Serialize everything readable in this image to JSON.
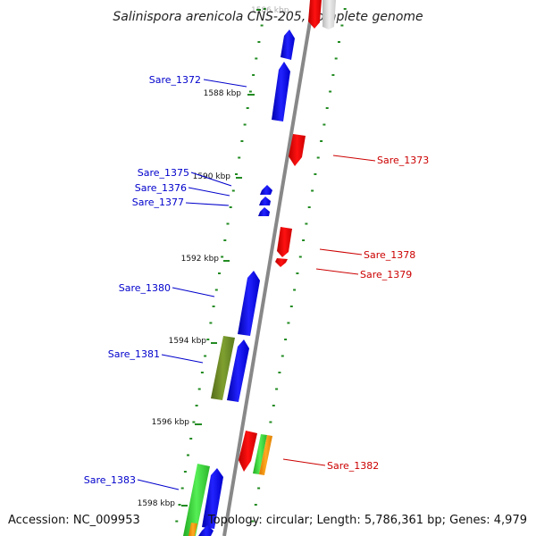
{
  "title": "Salinispora arenicola CNS-205, complete genome",
  "accession": "Accession: NC_009953",
  "summary": "Topology: circular; Length: 5,786,361 bp; Genes: 4,979",
  "colors": {
    "forward_gene": "#0000ee",
    "reverse_gene": "#ee0000",
    "forward_label": "#0000cc",
    "reverse_label": "#cc0000",
    "backbone": "#888888",
    "ticks": "#228B22",
    "olive_gene": "#6b8e23",
    "green_gene": "#33cc33",
    "orange_gene": "#ff9900"
  },
  "kbp_ticks": [
    {
      "id": "1586",
      "text": "1586 kbp"
    },
    {
      "id": "1588",
      "text": "1588 kbp"
    },
    {
      "id": "1590",
      "text": "1590 kbp"
    },
    {
      "id": "1592",
      "text": "1592 kbp"
    },
    {
      "id": "1594",
      "text": "1594 kbp"
    },
    {
      "id": "1596",
      "text": "1596 kbp"
    },
    {
      "id": "1598",
      "text": "1598 kbp"
    }
  ],
  "gene_labels": [
    {
      "id": "sare-1372",
      "text": "Sare_1372",
      "strand": "forward"
    },
    {
      "id": "sare-1373",
      "text": "Sare_1373",
      "strand": "reverse"
    },
    {
      "id": "sare-1375",
      "text": "Sare_1375",
      "strand": "forward"
    },
    {
      "id": "sare-1376",
      "text": "Sare_1376",
      "strand": "forward"
    },
    {
      "id": "sare-1377",
      "text": "Sare_1377",
      "strand": "forward"
    },
    {
      "id": "sare-1378",
      "text": "Sare_1378",
      "strand": "reverse"
    },
    {
      "id": "sare-1379",
      "text": "Sare_1379",
      "strand": "reverse"
    },
    {
      "id": "sare-1380",
      "text": "Sare_1380",
      "strand": "forward"
    },
    {
      "id": "sare-1381",
      "text": "Sare_1381",
      "strand": "forward"
    },
    {
      "id": "sare-1382",
      "text": "Sare_1382",
      "strand": "reverse"
    },
    {
      "id": "sare-1383",
      "text": "Sare_1383",
      "strand": "forward"
    }
  ]
}
